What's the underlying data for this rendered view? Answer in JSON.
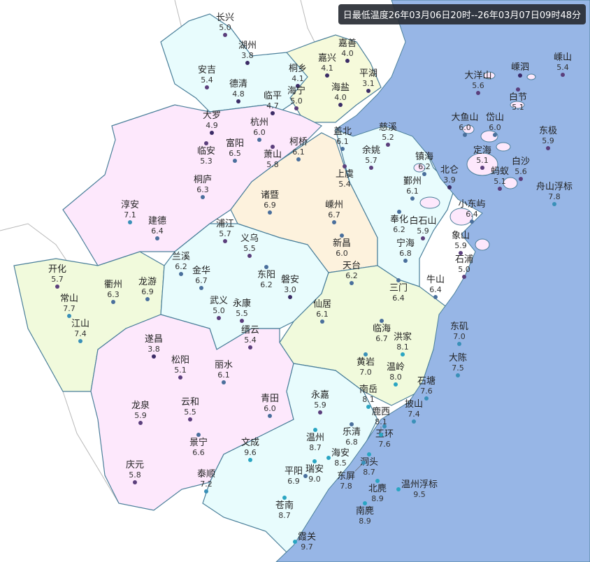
{
  "title": "日最低温度26年03月06日20时--26年03月07日09时48分",
  "colors": {
    "sea": "#97b6e6",
    "cyan_region": "#e8fcfd",
    "pink_region": "#fde8fc",
    "yellow_region": "#f6fadb",
    "peach_region": "#fdf2dd",
    "green_region": "#f1fadc",
    "border": "#4a7f9a"
  },
  "stations": [
    {
      "name": "长兴",
      "value": "5.0"
    },
    {
      "name": "湖州",
      "value": "3.8"
    },
    {
      "name": "安吉",
      "value": "5.4"
    },
    {
      "name": "德清",
      "value": "4.8"
    },
    {
      "name": "临平",
      "value": "4.7"
    },
    {
      "name": "嘉善",
      "value": "4.0"
    },
    {
      "name": "嘉兴",
      "value": "4.1"
    },
    {
      "name": "桐乡",
      "value": "4.1"
    },
    {
      "name": "平湖",
      "value": "3.1"
    },
    {
      "name": "海宁",
      "value": "5.0"
    },
    {
      "name": "海盐",
      "value": "4.0"
    },
    {
      "name": "大罗",
      "value": "4.9"
    },
    {
      "name": "临安",
      "value": "5.3"
    },
    {
      "name": "杭州",
      "value": "6.0"
    },
    {
      "name": "萧山",
      "value": "5.8"
    },
    {
      "name": "富阳",
      "value": "6.5"
    },
    {
      "name": "柯桥",
      "value": "6.1"
    },
    {
      "name": "盖北",
      "value": "6.1"
    },
    {
      "name": "上虞",
      "value": "5.4"
    },
    {
      "name": "余姚",
      "value": "5.7"
    },
    {
      "name": "慈溪",
      "value": "5.2"
    },
    {
      "name": "镇海",
      "value": "6.2"
    },
    {
      "name": "北仑",
      "value": "3.9"
    },
    {
      "name": "鄞州",
      "value": "6.1"
    },
    {
      "name": "奉化",
      "value": "6.2"
    },
    {
      "name": "桐庐",
      "value": "6.3"
    },
    {
      "name": "淳安",
      "value": "7.1"
    },
    {
      "name": "建德",
      "value": "6.4"
    },
    {
      "name": "诸暨",
      "value": "6.9"
    },
    {
      "name": "嵊州",
      "value": "6.7"
    },
    {
      "name": "新昌",
      "value": "6.0"
    },
    {
      "name": "浦江",
      "value": "5.7"
    },
    {
      "name": "义乌",
      "value": "5.5"
    },
    {
      "name": "东阳",
      "value": "6.2"
    },
    {
      "name": "兰溪",
      "value": "6.2"
    },
    {
      "name": "金华",
      "value": "6.7"
    },
    {
      "name": "磐安",
      "value": "3.0"
    },
    {
      "name": "天台",
      "value": "6.2"
    },
    {
      "name": "白石山",
      "value": "5.9"
    },
    {
      "name": "宁海",
      "value": "6.8"
    },
    {
      "name": "三门",
      "value": "6.4"
    },
    {
      "name": "象山",
      "value": "5.9"
    },
    {
      "name": "石浦",
      "value": "5.0"
    },
    {
      "name": "牛山",
      "value": "6.4"
    },
    {
      "name": "开化",
      "value": "5.7"
    },
    {
      "name": "衢州",
      "value": "6.3"
    },
    {
      "name": "龙游",
      "value": "6.9"
    },
    {
      "name": "常山",
      "value": "7.7"
    },
    {
      "name": "江山",
      "value": "7.4"
    },
    {
      "name": "武义",
      "value": "5.0"
    },
    {
      "name": "永康",
      "value": "5.5"
    },
    {
      "name": "仙居",
      "value": "6.1"
    },
    {
      "name": "临海",
      "value": "6.7"
    },
    {
      "name": "黄岩",
      "value": "7.0"
    },
    {
      "name": "洪家",
      "value": "8.1"
    },
    {
      "name": "东矶",
      "value": "7.0"
    },
    {
      "name": "大陈",
      "value": "7.5"
    },
    {
      "name": "缙云",
      "value": "5.4"
    },
    {
      "name": "遂昌",
      "value": "3.8"
    },
    {
      "name": "松阳",
      "value": "5.1"
    },
    {
      "name": "丽水",
      "value": "6.1"
    },
    {
      "name": "温岭",
      "value": "8.0"
    },
    {
      "name": "石塘",
      "value": "7.6"
    },
    {
      "name": "龙泉",
      "value": "5.9"
    },
    {
      "name": "云和",
      "value": "5.5"
    },
    {
      "name": "景宁",
      "value": "6.6"
    },
    {
      "name": "青田",
      "value": "6.0"
    },
    {
      "name": "永嘉",
      "value": "5.9"
    },
    {
      "name": "南岳",
      "value": "8.1"
    },
    {
      "name": "乐清",
      "value": "6.8"
    },
    {
      "name": "玉环",
      "value": "7.6"
    },
    {
      "name": "鹿西",
      "value": "8.1"
    },
    {
      "name": "披山",
      "value": "7.4"
    },
    {
      "name": "温州",
      "value": "8.7"
    },
    {
      "name": "洞头",
      "value": "8.7"
    },
    {
      "name": "瑞安",
      "value": "9.0"
    },
    {
      "name": "海安",
      "value": "8.5"
    },
    {
      "name": "东屏",
      "value": "7.8"
    },
    {
      "name": "平阳",
      "value": "6.9"
    },
    {
      "name": "北麂",
      "value": "8.9"
    },
    {
      "name": "温州浮标",
      "value": "9.5"
    },
    {
      "name": "南麂",
      "value": "8.9"
    },
    {
      "name": "文成",
      "value": "9.6"
    },
    {
      "name": "泰顺",
      "value": "7.2"
    },
    {
      "name": "苍南",
      "value": "8.7"
    },
    {
      "name": "庆元",
      "value": "5.8"
    },
    {
      "name": "霞关",
      "value": "9.7"
    },
    {
      "name": "大洋山",
      "value": "5.6"
    },
    {
      "name": "嵊泗",
      "value": ""
    },
    {
      "name": "白节",
      "value": "5.1"
    },
    {
      "name": "嵊山",
      "value": "5.4"
    },
    {
      "name": "大鱼山",
      "value": "6.0"
    },
    {
      "name": "岱山",
      "value": "6.0"
    },
    {
      "name": "东极",
      "value": "5.9"
    },
    {
      "name": "定海",
      "value": "5.1"
    },
    {
      "name": "白沙",
      "value": "5.6"
    },
    {
      "name": "蚂蚁",
      "value": "5.1"
    },
    {
      "name": "舟山浮标",
      "value": "7.8"
    },
    {
      "name": "小东屿",
      "value": "6.4"
    }
  ]
}
